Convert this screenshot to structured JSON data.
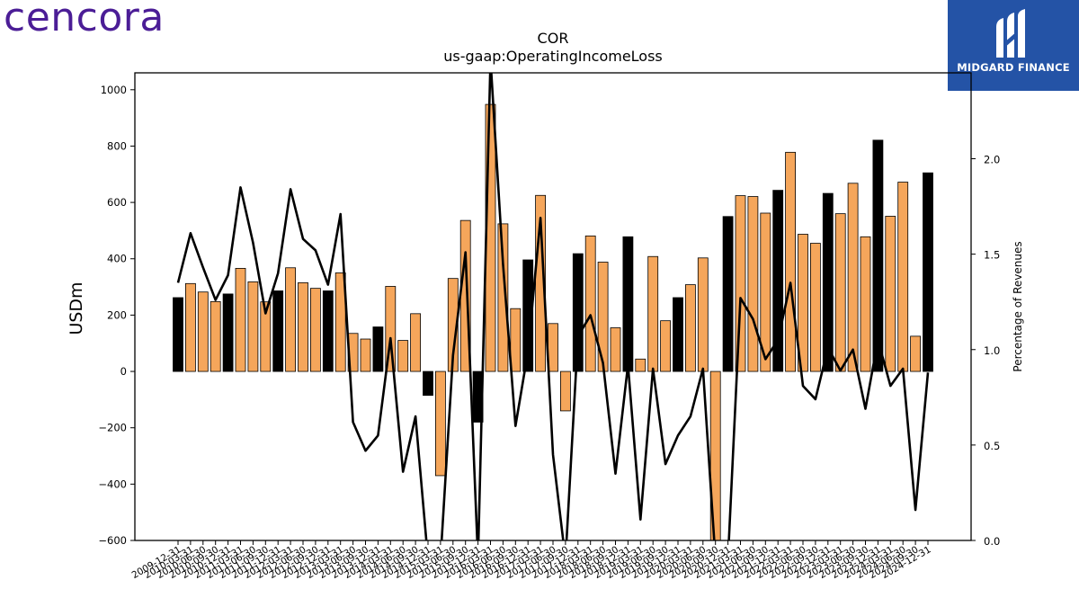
{
  "brand": {
    "left_logo": "cencora",
    "right_logo": "MIDGARD FINANCE"
  },
  "chart_data": {
    "type": "bar",
    "title": "COR",
    "subtitle": "us-gaap:OperatingIncomeLoss",
    "ylabel": "USDm",
    "y2label": "Percentage of Revenues",
    "ylim": [
      -600,
      1060
    ],
    "y2lim": [
      0.0,
      2.45
    ],
    "yticks": [
      -600,
      -400,
      -200,
      0,
      200,
      400,
      600,
      800,
      1000
    ],
    "y2ticks": [
      "0.0",
      "0.5",
      "1.0",
      "1.5",
      "2.0"
    ],
    "colors": {
      "annual": "#000000",
      "quarterly": "#f5a65b",
      "line": "#000000"
    },
    "categories": [
      "2009-12-31",
      "2010-03-31",
      "2010-06-30",
      "2010-09-30",
      "2010-12-31",
      "2011-03-31",
      "2011-06-30",
      "2011-09-30",
      "2011-12-31",
      "2012-03-31",
      "2012-06-30",
      "2012-09-30",
      "2012-12-31",
      "2013-03-31",
      "2013-06-30",
      "2013-09-30",
      "2013-12-31",
      "2014-03-31",
      "2014-06-30",
      "2014-09-30",
      "2014-12-31",
      "2015-03-31",
      "2015-06-30",
      "2015-09-30",
      "2015-12-31",
      "2016-03-31",
      "2016-06-30",
      "2016-09-30",
      "2016-12-31",
      "2017-03-31",
      "2017-06-30",
      "2017-09-30",
      "2017-12-31",
      "2018-03-31",
      "2018-06-30",
      "2018-09-30",
      "2018-12-31",
      "2019-03-31",
      "2019-06-30",
      "2019-09-30",
      "2019-12-31",
      "2020-03-31",
      "2020-06-30",
      "2020-09-30",
      "2020-12-31",
      "2021-03-31",
      "2021-06-30",
      "2021-09-30",
      "2021-12-31",
      "2022-03-31",
      "2022-06-30",
      "2022-09-30",
      "2022-12-31",
      "2023-03-31",
      "2023-06-30",
      "2023-09-30",
      "2023-12-31",
      "2024-03-31",
      "2024-06-30",
      "2024-09-30",
      "2024-12-31"
    ],
    "bar_values": [
      262,
      312,
      282,
      248,
      275,
      366,
      318,
      247,
      286,
      368,
      315,
      295,
      286,
      350,
      135,
      115,
      158,
      302,
      110,
      205,
      -85,
      -370,
      330,
      536,
      -180,
      948,
      524,
      223,
      396,
      625,
      170,
      -140,
      418,
      481,
      388,
      155,
      478,
      44,
      408,
      180,
      262,
      308,
      403,
      -614,
      550,
      624,
      621,
      562,
      643,
      778,
      487,
      455,
      632,
      560,
      668,
      478,
      821,
      551,
      672,
      125,
      705
    ],
    "bar_types": [
      "annual",
      "quarterly",
      "quarterly",
      "quarterly",
      "annual",
      "quarterly",
      "quarterly",
      "quarterly",
      "annual",
      "quarterly",
      "quarterly",
      "quarterly",
      "annual",
      "quarterly",
      "quarterly",
      "quarterly",
      "annual",
      "quarterly",
      "quarterly",
      "quarterly",
      "annual",
      "quarterly",
      "quarterly",
      "quarterly",
      "annual",
      "quarterly",
      "quarterly",
      "quarterly",
      "annual",
      "quarterly",
      "quarterly",
      "quarterly",
      "annual",
      "quarterly",
      "quarterly",
      "quarterly",
      "annual",
      "quarterly",
      "quarterly",
      "quarterly",
      "annual",
      "quarterly",
      "quarterly",
      "quarterly",
      "annual",
      "quarterly",
      "quarterly",
      "quarterly",
      "annual",
      "quarterly",
      "quarterly",
      "quarterly",
      "annual",
      "quarterly",
      "quarterly",
      "quarterly",
      "annual",
      "quarterly",
      "quarterly",
      "quarterly",
      "annual"
    ],
    "line_values": [
      1.35,
      1.61,
      1.43,
      1.26,
      1.39,
      1.85,
      1.56,
      1.19,
      1.4,
      1.84,
      1.58,
      1.52,
      1.34,
      1.71,
      0.62,
      0.47,
      0.55,
      1.06,
      0.36,
      0.65,
      -0.1,
      -0.1,
      0.97,
      1.51,
      -0.1,
      2.52,
      1.45,
      0.6,
      0.99,
      1.69,
      0.45,
      -0.1,
      1.07,
      1.18,
      0.93,
      0.35,
      0.92,
      0.11,
      0.9,
      0.4,
      0.55,
      0.65,
      0.9,
      -0.1,
      -0.1,
      1.27,
      1.16,
      0.95,
      1.05,
      1.35,
      0.81,
      0.74,
      1.01,
      0.89,
      1.0,
      0.69,
      1.05,
      0.81,
      0.9,
      0.16,
      0.88
    ]
  }
}
